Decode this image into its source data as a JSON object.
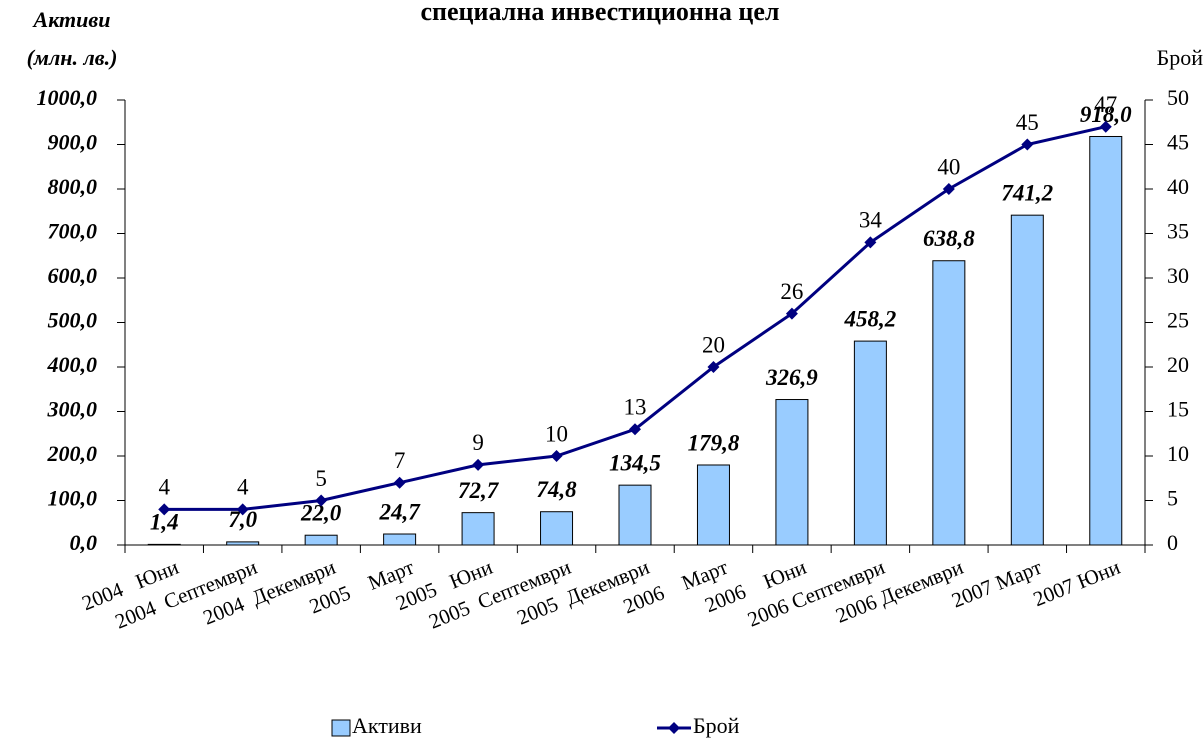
{
  "chart_data": {
    "type": "bar_line",
    "title": "специална инвестиционна цел",
    "ylabel": "Активи",
    "ylabel_unit": "(млн. лв.)",
    "y2label": "Брой",
    "categories": [
      "2004   Юни",
      "2004  Септември",
      "2004  Декември",
      "2005    Март",
      "2005   Юни",
      "2005  Септември",
      "2005  Декември",
      "2006    Март",
      "2006    Юни",
      "2006 Септември",
      "2006 Декември",
      "2007 Март",
      "2007 Юни"
    ],
    "series": [
      {
        "name": "Активи",
        "type": "bar",
        "color": "#99ccff",
        "values": [
          1.4,
          7.0,
          22.0,
          24.7,
          72.7,
          74.8,
          134.5,
          179.8,
          326.9,
          458.2,
          638.8,
          741.2,
          918.0
        ],
        "value_labels": [
          "1,4",
          "7,0",
          "22,0",
          "24,7",
          "72,7",
          "74,8",
          "134,5",
          "179,8",
          "326,9",
          "458,2",
          "638,8",
          "741,2",
          "918,0"
        ]
      },
      {
        "name": "Брой",
        "type": "line",
        "axis": "y2",
        "color": "#000080",
        "values": [
          4,
          4,
          5,
          7,
          9,
          10,
          13,
          20,
          26,
          34,
          40,
          45,
          47
        ]
      }
    ],
    "ylim": [
      0,
      1000
    ],
    "yticks": [
      {
        "value": 0,
        "label": "0,0"
      },
      {
        "value": 100,
        "label": "100,0"
      },
      {
        "value": 200,
        "label": "200,0"
      },
      {
        "value": 300,
        "label": "300,0"
      },
      {
        "value": 400,
        "label": "400,0"
      },
      {
        "value": 500,
        "label": "500,0"
      },
      {
        "value": 600,
        "label": "600,0"
      },
      {
        "value": 700,
        "label": "700,0"
      },
      {
        "value": 800,
        "label": "800,0"
      },
      {
        "value": 900,
        "label": "900,0"
      },
      {
        "value": 1000,
        "label": "1000,0"
      }
    ],
    "y2lim": [
      0,
      50
    ],
    "y2ticks": [
      0,
      5,
      10,
      15,
      20,
      25,
      30,
      35,
      40,
      45,
      50
    ],
    "legend": "bottom"
  }
}
